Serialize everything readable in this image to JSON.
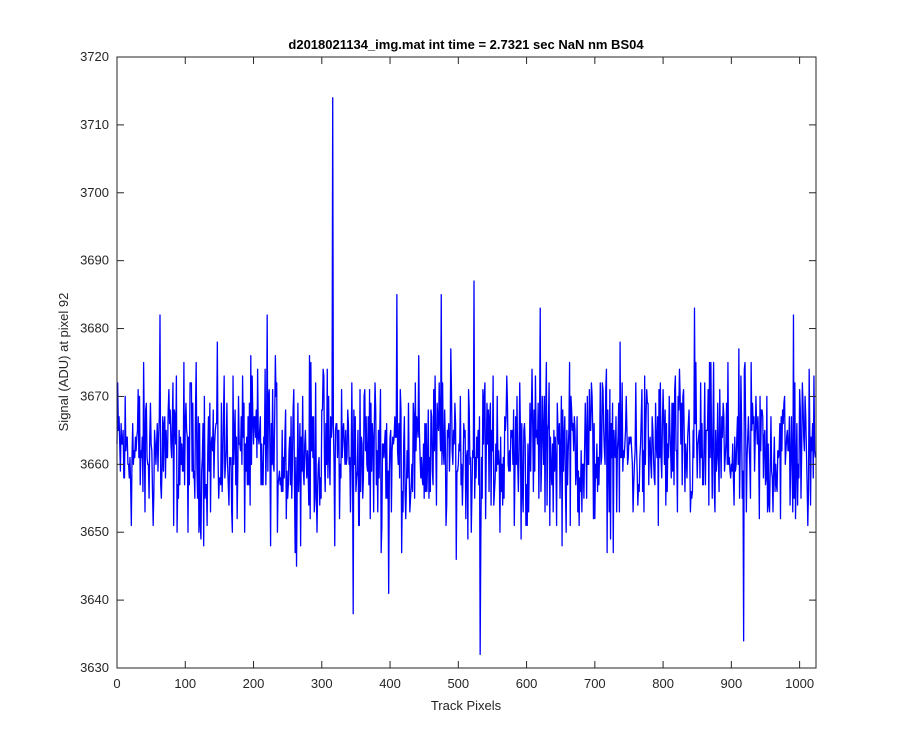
{
  "chart_data": {
    "type": "line",
    "title": "d2018021134_img.mat int time = 2.7321 sec  NaN nm BS04",
    "xlabel": "Track Pixels",
    "ylabel": "Signal (ADU) at pixel 92",
    "xlim": [
      0,
      1024
    ],
    "ylim": [
      3630,
      3720
    ],
    "xticks": [
      0,
      100,
      200,
      300,
      400,
      500,
      600,
      700,
      800,
      900,
      1000
    ],
    "yticks": [
      3630,
      3640,
      3650,
      3660,
      3670,
      3680,
      3690,
      3700,
      3710,
      3720
    ],
    "grid": false,
    "series": [
      {
        "color": "#0000ff",
        "mean": 3662,
        "spread": 6,
        "n_points": 1024,
        "notable_points": [
          {
            "x": 63,
            "y": 3682
          },
          {
            "x": 220,
            "y": 3682
          },
          {
            "x": 316,
            "y": 3714
          },
          {
            "x": 346,
            "y": 3638
          },
          {
            "x": 398,
            "y": 3641
          },
          {
            "x": 410,
            "y": 3685
          },
          {
            "x": 475,
            "y": 3685
          },
          {
            "x": 523,
            "y": 3687
          },
          {
            "x": 532,
            "y": 3632
          },
          {
            "x": 620,
            "y": 3683
          },
          {
            "x": 846,
            "y": 3683
          },
          {
            "x": 918,
            "y": 3634
          },
          {
            "x": 991,
            "y": 3682
          }
        ]
      }
    ]
  }
}
